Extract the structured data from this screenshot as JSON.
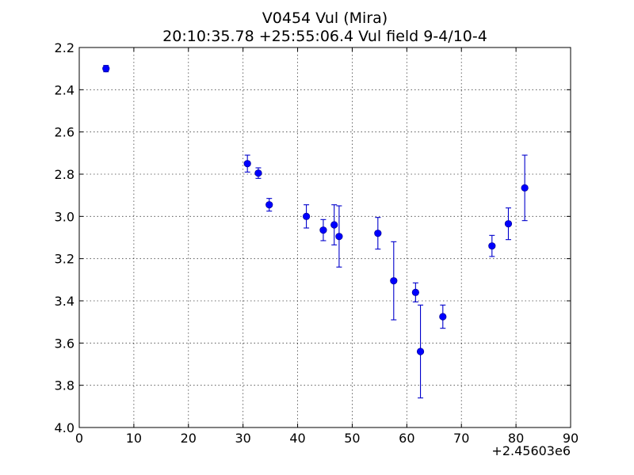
{
  "chart_data": {
    "type": "scatter",
    "title": "V0454 Vul (Mira)",
    "subtitle": "20:10:35.78 +25:55:06.4 Vul field 9-4/10-4",
    "x_offset_label": "+2.45603e6",
    "xlim": [
      0,
      90
    ],
    "ylim": [
      2.2,
      4.0
    ],
    "y_inverted": true,
    "grid": true,
    "x_ticks": [
      0,
      10,
      20,
      30,
      40,
      50,
      60,
      70,
      80,
      90
    ],
    "x_tick_labels": [
      "0",
      "10",
      "20",
      "30",
      "40",
      "50",
      "60",
      "70",
      "80",
      "90"
    ],
    "y_ticks": [
      2.2,
      2.4,
      2.6,
      2.8,
      3.0,
      3.2,
      3.4,
      3.6,
      3.8,
      4.0
    ],
    "y_tick_labels": [
      "2.2",
      "2.4",
      "2.6",
      "2.8",
      "3.0",
      "3.2",
      "3.4",
      "3.6",
      "3.8",
      "4.0"
    ],
    "marker_color": "#0000ff",
    "errorbar_color": "#0000cc",
    "points": [
      {
        "x": 4.9,
        "y": 2.3,
        "err": 0.015
      },
      {
        "x": 30.8,
        "y": 2.75,
        "err": 0.04
      },
      {
        "x": 32.8,
        "y": 2.795,
        "err": 0.025
      },
      {
        "x": 34.8,
        "y": 2.945,
        "err": 0.03
      },
      {
        "x": 41.6,
        "y": 3.0,
        "err": 0.055
      },
      {
        "x": 44.7,
        "y": 3.065,
        "err": 0.05
      },
      {
        "x": 46.7,
        "y": 3.04,
        "err": 0.095
      },
      {
        "x": 47.6,
        "y": 3.095,
        "err": 0.145
      },
      {
        "x": 54.7,
        "y": 3.08,
        "err": 0.075
      },
      {
        "x": 57.6,
        "y": 3.305,
        "err": 0.185
      },
      {
        "x": 61.6,
        "y": 3.36,
        "err": 0.045
      },
      {
        "x": 62.5,
        "y": 3.64,
        "err": 0.22
      },
      {
        "x": 66.6,
        "y": 3.475,
        "err": 0.055
      },
      {
        "x": 75.6,
        "y": 3.14,
        "err": 0.05
      },
      {
        "x": 78.6,
        "y": 3.035,
        "err": 0.075
      },
      {
        "x": 81.6,
        "y": 2.865,
        "err": 0.155
      }
    ]
  }
}
